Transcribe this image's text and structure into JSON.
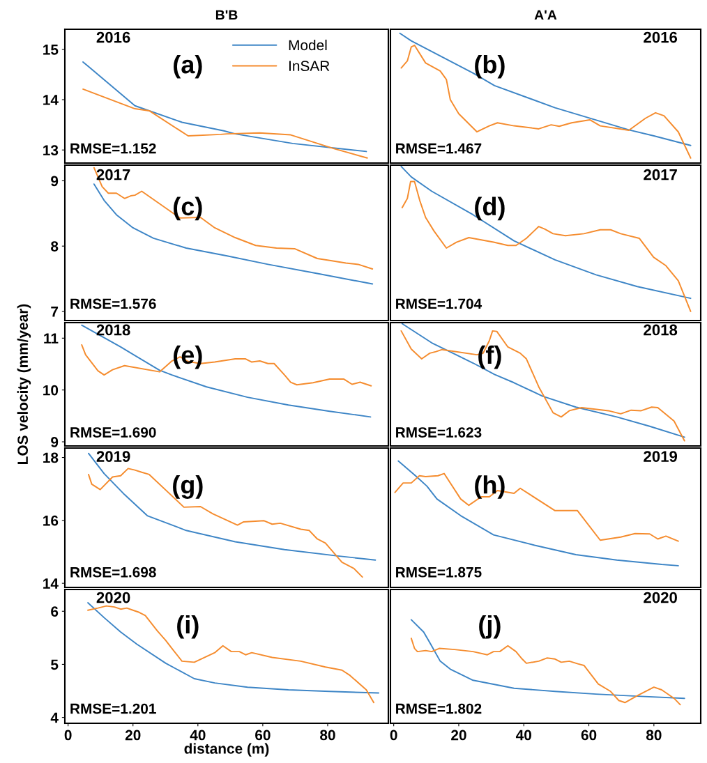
{
  "chart_data": [
    {
      "type": "line",
      "title": "B'B",
      "xlim": [
        -1,
        98.7
      ],
      "xticks": [
        0,
        20,
        40,
        60,
        80
      ],
      "ylim": [
        12.74,
        15.4
      ],
      "yticks": [
        13,
        14,
        15
      ],
      "tick_labels": "y",
      "legend": "top right",
      "annotations": [
        "2016",
        "(a)",
        "RMSE=1.152"
      ],
      "series": [
        {
          "name": "Model",
          "color": "#3d85c6",
          "x": [
            4.6,
            6.1,
            20.6,
            35.1,
            48,
            51.5,
            69.2,
            91.9
          ],
          "values": [
            14.75,
            14.67,
            13.88,
            13.55,
            13.38,
            13.32,
            13.13,
            12.97
          ]
        },
        {
          "name": "InSAR",
          "color": "#f58c2e",
          "x": [
            4.6,
            11.1,
            20.6,
            25,
            37,
            47,
            49,
            59,
            68.6,
            81.8,
            92.2
          ],
          "values": [
            14.21,
            14.05,
            13.82,
            13.78,
            13.28,
            13.31,
            13.32,
            13.34,
            13.3,
            13.03,
            12.84
          ]
        }
      ]
    },
    {
      "type": "line",
      "title": "A'A",
      "xlim": [
        -1,
        94.4
      ],
      "xticks": [
        0,
        20,
        40,
        60,
        80
      ],
      "ylim": [
        12.74,
        15.4
      ],
      "yticks": [
        13,
        14,
        15
      ],
      "tick_labels": false,
      "annotations": [
        "2016",
        "(b)",
        "RMSE=1.467"
      ],
      "series": [
        {
          "color": "#3d85c6",
          "x": [
            1.9,
            5.4,
            24.4,
            31,
            49.6,
            72.3,
            80,
            91.3
          ],
          "values": [
            15.32,
            15.17,
            14.53,
            14.28,
            13.84,
            13.4,
            13.28,
            13.09
          ]
        },
        {
          "color": "#f58c2e",
          "x": [
            2.3,
            4.2,
            5.4,
            6.4,
            9.8,
            14.3,
            16.2,
            17.4,
            20,
            25.6,
            29.4,
            31.9,
            37,
            44.6,
            48.4,
            50.9,
            54.7,
            60.3,
            63.5,
            72.3,
            77.4,
            80.5,
            83.1,
            87.5,
            91.3
          ],
          "values": [
            14.63,
            14.77,
            15.05,
            15.08,
            14.73,
            14.57,
            14.4,
            14.0,
            13.72,
            13.36,
            13.48,
            13.54,
            13.48,
            13.42,
            13.5,
            13.47,
            13.54,
            13.6,
            13.48,
            13.39,
            13.63,
            13.74,
            13.68,
            13.36,
            12.84
          ]
        }
      ]
    },
    {
      "type": "line",
      "xlim": [
        -1,
        98.7
      ],
      "xticks": [
        0,
        20,
        40,
        60,
        80
      ],
      "ylim": [
        6.86,
        9.24
      ],
      "yticks": [
        7,
        8,
        9
      ],
      "tick_labels": "y",
      "annotations": [
        "2017",
        "(c)",
        "RMSE=1.576"
      ],
      "series": [
        {
          "color": "#3d85c6",
          "x": [
            8,
            11.1,
            14.9,
            20,
            26.3,
            36.4,
            49,
            61.6,
            76.8,
            93.8
          ],
          "values": [
            8.95,
            8.7,
            8.48,
            8.28,
            8.12,
            7.97,
            7.85,
            7.72,
            7.58,
            7.42
          ]
        },
        {
          "color": "#f58c2e",
          "x": [
            8,
            10.5,
            12.4,
            14.9,
            17.4,
            19.3,
            20.6,
            22.7,
            34.5,
            40.8,
            45.2,
            51.5,
            57.8,
            64.2,
            69.8,
            76.8,
            80.6,
            85.6,
            89.4,
            93.8
          ],
          "values": [
            9.2,
            8.91,
            8.81,
            8.81,
            8.73,
            8.77,
            8.78,
            8.84,
            8.43,
            8.44,
            8.28,
            8.13,
            8.01,
            7.97,
            7.96,
            7.81,
            7.78,
            7.74,
            7.72,
            7.65
          ]
        }
      ]
    },
    {
      "type": "line",
      "xlim": [
        -1,
        94.4
      ],
      "xticks": [
        0,
        20,
        40,
        60,
        80
      ],
      "ylim": [
        6.86,
        9.24
      ],
      "yticks": [
        7,
        8,
        9
      ],
      "tick_labels": false,
      "annotations": [
        "2017",
        "(d)",
        "RMSE=1.704"
      ],
      "series": [
        {
          "color": "#3d85c6",
          "x": [
            2.3,
            5.4,
            11.7,
            24.4,
            37,
            49.6,
            62.2,
            74.9,
            91.3
          ],
          "values": [
            9.22,
            9.06,
            8.84,
            8.48,
            8.08,
            7.79,
            7.56,
            7.38,
            7.2
          ]
        },
        {
          "color": "#f58c2e",
          "x": [
            2.6,
            4.2,
            5.2,
            6.4,
            8,
            9.8,
            12.4,
            16.2,
            19.3,
            23.1,
            30.7,
            35.1,
            37.6,
            40.8,
            44.6,
            46.5,
            49,
            52.8,
            58.5,
            63.5,
            66.7,
            69.8,
            75.5,
            79.9,
            83.7,
            87.5,
            91.3
          ],
          "values": [
            8.59,
            8.73,
            8.99,
            8.99,
            8.7,
            8.44,
            8.23,
            7.97,
            8.06,
            8.13,
            8.06,
            8.01,
            8.01,
            8.12,
            8.3,
            8.26,
            8.19,
            8.16,
            8.19,
            8.25,
            8.25,
            8.19,
            8.12,
            7.83,
            7.7,
            7.47,
            7.0
          ]
        }
      ]
    },
    {
      "type": "line",
      "ylabel": "LOS velocity (mm/year)",
      "xlim": [
        -1,
        98.7
      ],
      "xticks": [
        0,
        20,
        40,
        60,
        80
      ],
      "ylim": [
        8.92,
        11.3
      ],
      "yticks": [
        9,
        10,
        11
      ],
      "tick_labels": "y",
      "annotations": [
        "2018",
        "(e)",
        "RMSE=1.690"
      ],
      "series": [
        {
          "color": "#3d85c6",
          "x": [
            4.2,
            16.2,
            28.2,
            32,
            42.7,
            55.3,
            67.9,
            80.6,
            93.2
          ],
          "values": [
            11.25,
            10.83,
            10.38,
            10.29,
            10.06,
            9.86,
            9.71,
            9.59,
            9.48
          ]
        },
        {
          "color": "#f58c2e",
          "x": [
            4.2,
            5.4,
            9.2,
            11.1,
            13.7,
            17.4,
            28.2,
            32,
            34.5,
            37,
            40.8,
            45.2,
            51.5,
            54.7,
            56.6,
            59.1,
            61.6,
            63.5,
            66.7,
            68.6,
            70.5,
            75.5,
            80.6,
            85,
            87.5,
            90,
            93.4
          ],
          "values": [
            10.87,
            10.68,
            10.37,
            10.29,
            10.39,
            10.47,
            10.35,
            10.56,
            10.64,
            10.55,
            10.51,
            10.54,
            10.6,
            10.6,
            10.54,
            10.56,
            10.51,
            10.51,
            10.29,
            10.15,
            10.1,
            10.14,
            10.21,
            10.21,
            10.11,
            10.15,
            10.08
          ]
        }
      ]
    },
    {
      "type": "line",
      "xlim": [
        -1,
        94.4
      ],
      "xticks": [
        0,
        20,
        40,
        60,
        80
      ],
      "ylim": [
        8.92,
        11.3
      ],
      "yticks": [
        9,
        10,
        11
      ],
      "tick_labels": false,
      "annotations": [
        "2018",
        "(f)",
        "RMSE=1.623"
      ],
      "series": [
        {
          "color": "#3d85c6",
          "x": [
            2.6,
            11.7,
            24.4,
            31,
            37,
            45.8,
            56,
            68.6,
            78.7,
            89.4
          ],
          "values": [
            11.28,
            10.91,
            10.52,
            10.3,
            10.14,
            9.88,
            9.67,
            9.48,
            9.3,
            9.09
          ]
        },
        {
          "color": "#f58c2e",
          "x": [
            2.3,
            5.4,
            8.6,
            11.1,
            13,
            14.9,
            25.6,
            27.5,
            29.4,
            30.4,
            31.7,
            35.1,
            38.9,
            40.8,
            44.6,
            49,
            51.5,
            54,
            57.8,
            66,
            69.8,
            73,
            76.1,
            79.3,
            81.2,
            86.2,
            89.4
          ],
          "values": [
            11.14,
            10.79,
            10.6,
            10.71,
            10.74,
            10.78,
            10.68,
            10.71,
            10.95,
            11.14,
            11.13,
            10.83,
            10.71,
            10.6,
            10.06,
            9.56,
            9.48,
            9.6,
            9.66,
            9.6,
            9.54,
            9.61,
            9.6,
            9.67,
            9.66,
            9.4,
            9.02
          ]
        }
      ]
    },
    {
      "type": "line",
      "xlim": [
        -1,
        98.7
      ],
      "xticks": [
        0,
        20,
        40,
        60,
        80
      ],
      "ylim": [
        13.87,
        18.3
      ],
      "yticks": [
        14,
        16,
        18
      ],
      "tick_labels": "y",
      "annotations": [
        "2019",
        "(g)",
        "RMSE=1.698"
      ],
      "series": [
        {
          "color": "#3d85c6",
          "x": [
            6.3,
            11.1,
            17.4,
            24.4,
            36.4,
            51.5,
            66.7,
            83.1,
            94.7
          ],
          "values": [
            18.13,
            17.49,
            16.82,
            16.15,
            15.68,
            15.32,
            15.07,
            14.87,
            14.74
          ]
        },
        {
          "color": "#f58c2e",
          "x": [
            6.3,
            7.3,
            9.9,
            13.7,
            16.2,
            18.5,
            20.6,
            22.7,
            25,
            35.7,
            40.8,
            44.6,
            52.2,
            54,
            60.4,
            62.9,
            65.4,
            71.7,
            74.3,
            76.8,
            79.3,
            84.4,
            88.1,
            90.7
          ],
          "values": [
            17.46,
            17.15,
            16.98,
            17.38,
            17.42,
            17.65,
            17.6,
            17.53,
            17.46,
            16.42,
            16.44,
            16.21,
            15.85,
            15.95,
            15.99,
            15.88,
            15.91,
            15.72,
            15.68,
            15.41,
            15.28,
            14.67,
            14.47,
            14.2
          ]
        }
      ]
    },
    {
      "type": "line",
      "xlim": [
        -1,
        94.4
      ],
      "xticks": [
        0,
        20,
        40,
        60,
        80
      ],
      "ylim": [
        13.87,
        18.3
      ],
      "yticks": [
        14,
        16,
        18
      ],
      "tick_labels": false,
      "annotations": [
        "2019",
        "(h)",
        "RMSE=1.875"
      ],
      "series": [
        {
          "color": "#3d85c6",
          "x": [
            1.4,
            6.7,
            10.2,
            13.3,
            20.6,
            30.7,
            43.3,
            56,
            68.6,
            82.4,
            87.5
          ],
          "values": [
            17.89,
            17.42,
            17.09,
            16.68,
            16.15,
            15.54,
            15.21,
            14.91,
            14.74,
            14.6,
            14.56
          ]
        },
        {
          "color": "#f58c2e",
          "x": [
            0.4,
            2.9,
            5.4,
            7.9,
            9.8,
            13.6,
            15.5,
            20.6,
            23.1,
            26.9,
            29.4,
            31.9,
            37,
            38.9,
            49.6,
            51.5,
            56.5,
            63.5,
            69.8,
            74.2,
            78.7,
            81.2,
            83.7,
            87.5
          ],
          "values": [
            16.89,
            17.19,
            17.19,
            17.42,
            17.39,
            17.42,
            17.49,
            16.68,
            16.48,
            16.75,
            16.75,
            16.95,
            16.86,
            17.02,
            16.31,
            16.31,
            16.31,
            15.37,
            15.47,
            15.58,
            15.57,
            15.41,
            15.5,
            15.34
          ]
        }
      ]
    },
    {
      "type": "line",
      "xlabel": "distance (m)",
      "xlim": [
        -1,
        98.7
      ],
      "xticks": [
        0,
        20,
        40,
        60,
        80
      ],
      "ylim": [
        3.89,
        6.41
      ],
      "yticks": [
        4,
        5,
        6
      ],
      "annotations": [
        "2020",
        "(i)",
        "RMSE=1.201"
      ],
      "series": [
        {
          "color": "#3d85c6",
          "x": [
            6.1,
            11.1,
            16.2,
            21.2,
            30.1,
            38.9,
            45.2,
            55.3,
            67.9,
            80.6,
            95.7
          ],
          "values": [
            6.16,
            5.88,
            5.61,
            5.38,
            5.02,
            4.73,
            4.65,
            4.57,
            4.52,
            4.49,
            4.46
          ]
        },
        {
          "color": "#f58c2e",
          "x": [
            6.1,
            9.2,
            11.8,
            14.3,
            16.2,
            18.1,
            20,
            21.9,
            23.8,
            27.5,
            30.1,
            32,
            35.1,
            38.9,
            45.2,
            47.7,
            50.3,
            52.8,
            54.7,
            56.6,
            62.9,
            71.7,
            79.3,
            84.4,
            86.9,
            91.9,
            94.2
          ],
          "values": [
            6.02,
            6.06,
            6.1,
            6.08,
            6.04,
            6.06,
            6.02,
            5.98,
            5.92,
            5.63,
            5.45,
            5.3,
            5.06,
            5.04,
            5.22,
            5.35,
            5.24,
            5.24,
            5.18,
            5.22,
            5.13,
            5.06,
            4.95,
            4.89,
            4.79,
            4.52,
            4.28
          ]
        }
      ]
    },
    {
      "type": "line",
      "xlim": [
        -1,
        94.4
      ],
      "xticks": [
        0,
        20,
        40,
        60,
        80
      ],
      "ylim": [
        3.89,
        6.41
      ],
      "yticks": [
        4,
        5,
        6
      ],
      "tick_labels": "x",
      "annotations": [
        "2020",
        "(j)",
        "RMSE=1.802"
      ],
      "series": [
        {
          "color": "#3d85c6",
          "x": [
            5.4,
            9.2,
            11.1,
            14.3,
            17.4,
            24.4,
            37,
            49.6,
            62.2,
            74.9,
            89.4
          ],
          "values": [
            5.84,
            5.61,
            5.41,
            5.06,
            4.91,
            4.7,
            4.55,
            4.49,
            4.44,
            4.4,
            4.36
          ]
        },
        {
          "color": "#f58c2e",
          "x": [
            5.4,
            6.4,
            7.3,
            9.8,
            11.7,
            14,
            18.7,
            24.4,
            28.8,
            30.7,
            32.6,
            35.1,
            37.6,
            39.5,
            40.8,
            44.6,
            47.1,
            49.6,
            51.5,
            54,
            56.6,
            58.5,
            62.9,
            66.7,
            69.2,
            71.1,
            74.9,
            80,
            82.4,
            86.2,
            88.1
          ],
          "values": [
            5.49,
            5.3,
            5.24,
            5.26,
            5.24,
            5.3,
            5.28,
            5.24,
            5.18,
            5.24,
            5.24,
            5.35,
            5.24,
            5.1,
            5.02,
            5.06,
            5.12,
            5.1,
            5.04,
            5.06,
            5.01,
            4.98,
            4.63,
            4.49,
            4.32,
            4.28,
            4.41,
            4.57,
            4.52,
            4.36,
            4.24
          ]
        }
      ]
    }
  ]
}
